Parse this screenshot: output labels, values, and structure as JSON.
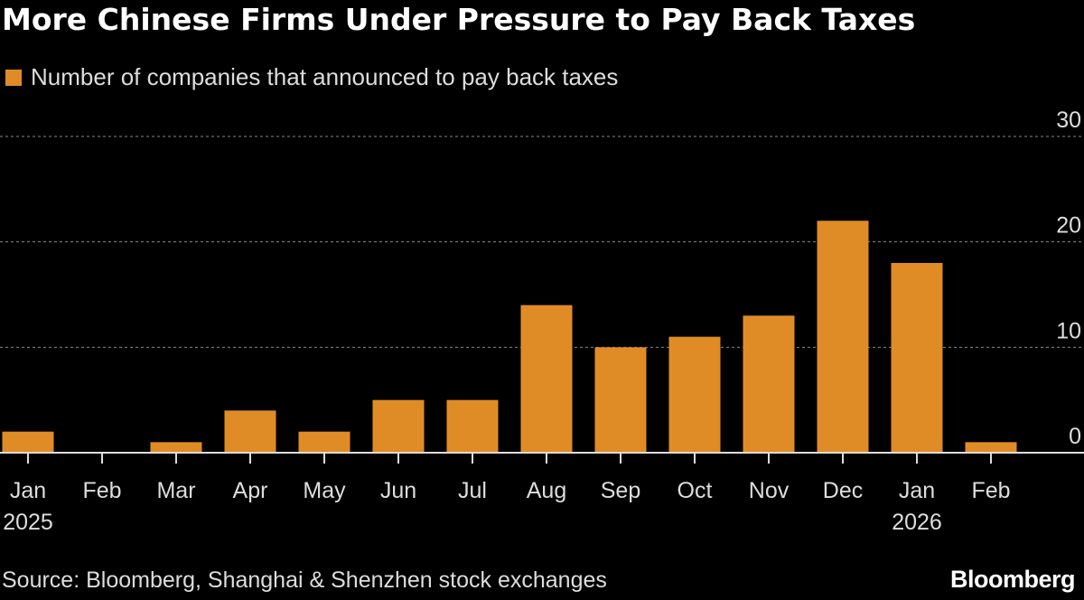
{
  "chart_data": {
    "type": "bar",
    "title": "More Chinese Firms Under Pressure to Pay Back Taxes",
    "legend": [
      "Number of companies that announced to pay back taxes"
    ],
    "categories": [
      "Jan",
      "Feb",
      "Mar",
      "Apr",
      "May",
      "Jun",
      "Jul",
      "Aug",
      "Sep",
      "Oct",
      "Nov",
      "Dec",
      "Jan",
      "Feb"
    ],
    "year_labels": {
      "0": "2025",
      "12": "2026"
    },
    "values": [
      2,
      0,
      1,
      4,
      2,
      5,
      5,
      14,
      10,
      11,
      13,
      22,
      18,
      1
    ],
    "yticks": [
      0,
      10,
      20,
      30
    ],
    "ylim": [
      0,
      30
    ],
    "xlabel": "",
    "ylabel": "",
    "grid": true,
    "legend_position": "top-left",
    "bar_color": "#e08c26"
  },
  "source": "Source: Bloomberg, Shanghai & Shenzhen stock exchanges",
  "brand": "Bloomberg"
}
